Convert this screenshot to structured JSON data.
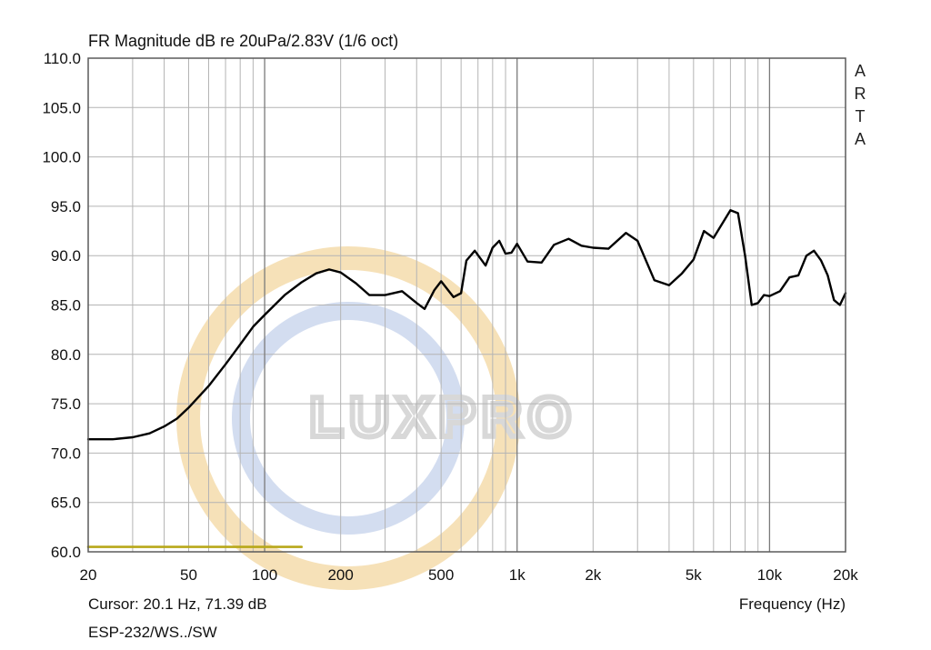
{
  "chart_data": {
    "type": "line",
    "title": "FR Magnitude dB re 20uPa/2.83V (1/6 oct)",
    "xlabel": "Frequency (Hz)",
    "ylabel": "",
    "xscale": "log",
    "xlim": [
      20,
      20000
    ],
    "ylim": [
      60,
      110
    ],
    "grid": true,
    "y_ticks": [
      "110.0",
      "105.0",
      "100.0",
      "95.0",
      "90.0",
      "85.0",
      "80.0",
      "75.0",
      "70.0",
      "65.0",
      "60.0"
    ],
    "x_ticks": [
      {
        "value": 20,
        "label": "20"
      },
      {
        "value": 50,
        "label": "50"
      },
      {
        "value": 100,
        "label": "100"
      },
      {
        "value": 200,
        "label": "200"
      },
      {
        "value": 500,
        "label": "500"
      },
      {
        "value": 1000,
        "label": "1k"
      },
      {
        "value": 2000,
        "label": "2k"
      },
      {
        "value": 5000,
        "label": "5k"
      },
      {
        "value": 10000,
        "label": "10k"
      },
      {
        "value": 20000,
        "label": "20k"
      }
    ],
    "series": [
      {
        "color": "#000000",
        "x": [
          20,
          25,
          30,
          35,
          40,
          45,
          50,
          60,
          70,
          80,
          90,
          100,
          120,
          140,
          160,
          180,
          200,
          230,
          260,
          300,
          350,
          400,
          430,
          470,
          500,
          560,
          600,
          630,
          680,
          750,
          800,
          850,
          900,
          950,
          1000,
          1100,
          1250,
          1400,
          1600,
          1800,
          2000,
          2300,
          2700,
          3000,
          3500,
          4000,
          4500,
          5000,
          5500,
          6000,
          7000,
          7500,
          8000,
          8500,
          9000,
          9500,
          10000,
          11000,
          12000,
          13000,
          14000,
          15000,
          16000,
          17000,
          18000,
          19000,
          20000
        ],
        "y": [
          71.4,
          71.4,
          71.6,
          72.0,
          72.7,
          73.5,
          74.6,
          76.8,
          79.0,
          81.0,
          82.8,
          84.0,
          86.0,
          87.3,
          88.2,
          88.6,
          88.3,
          87.2,
          86.0,
          86.0,
          86.4,
          85.2,
          84.6,
          86.5,
          87.4,
          85.8,
          86.2,
          89.5,
          90.5,
          89.0,
          90.8,
          91.5,
          90.2,
          90.3,
          91.2,
          89.4,
          89.3,
          91.1,
          91.7,
          91.0,
          90.8,
          90.7,
          92.3,
          91.5,
          87.5,
          87.0,
          88.2,
          89.6,
          92.5,
          91.8,
          94.6,
          94.3,
          90.0,
          85.0,
          85.2,
          86.0,
          85.9,
          86.4,
          87.8,
          88.0,
          90.0,
          90.5,
          89.5,
          88.0,
          85.5,
          85.0,
          86.2
        ]
      },
      {
        "color": "#b8a81a",
        "x": [
          20,
          140
        ],
        "y": [
          60.5,
          60.5
        ]
      }
    ]
  },
  "header": {
    "title": "FR Magnitude dB re 20uPa/2.83V (1/6 oct)",
    "brand_letters": [
      "A",
      "R",
      "T",
      "A"
    ]
  },
  "footer": {
    "cursor": "Cursor: 20.1 Hz, 71.39 dB",
    "model": "ESP-232/WS../SW",
    "xaxis_label": "Frequency (Hz)"
  },
  "watermark": {
    "text": "LUXPRO",
    "ring_outer_color": "#f3d7a0",
    "ring_inner_color": "#c8d4ec",
    "text_color": "#d8d8d8"
  },
  "colors": {
    "grid": "#b4b4b4",
    "frame": "#5a5a5a",
    "curve": "#000000"
  }
}
